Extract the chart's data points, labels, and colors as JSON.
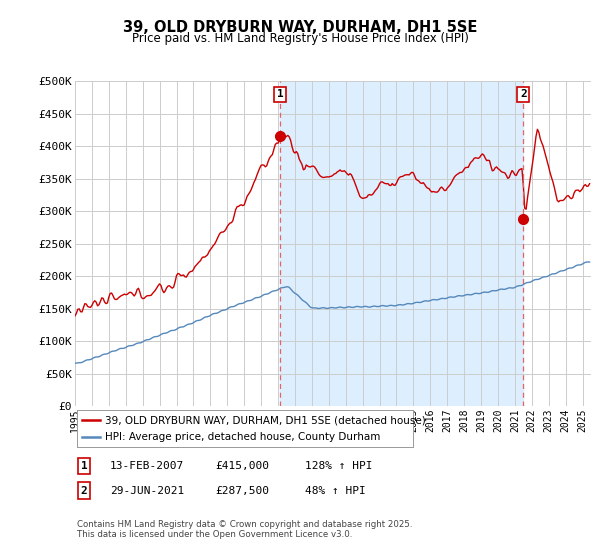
{
  "title": "39, OLD DRYBURN WAY, DURHAM, DH1 5SE",
  "subtitle": "Price paid vs. HM Land Registry's House Price Index (HPI)",
  "ylabel_ticks": [
    "£0",
    "£50K",
    "£100K",
    "£150K",
    "£200K",
    "£250K",
    "£300K",
    "£350K",
    "£400K",
    "£450K",
    "£500K"
  ],
  "ytick_values": [
    0,
    50000,
    100000,
    150000,
    200000,
    250000,
    300000,
    350000,
    400000,
    450000,
    500000
  ],
  "ylim": [
    0,
    500000
  ],
  "xlim_start": 1995.0,
  "xlim_end": 2025.5,
  "red_line_color": "#cc0000",
  "blue_line_color": "#5588bb",
  "dashed_line_color": "#dd6666",
  "shade_color": "#ddeeff",
  "marker1_x": 2007.11,
  "marker1_y": 415000,
  "marker2_x": 2021.5,
  "marker2_y": 287500,
  "legend_label_red": "39, OLD DRYBURN WAY, DURHAM, DH1 5SE (detached house)",
  "legend_label_blue": "HPI: Average price, detached house, County Durham",
  "annotation1_label": "1",
  "annotation2_label": "2",
  "table_row1": [
    "1",
    "13-FEB-2007",
    "£415,000",
    "128% ↑ HPI"
  ],
  "table_row2": [
    "2",
    "29-JUN-2021",
    "£287,500",
    "48% ↑ HPI"
  ],
  "footer": "Contains HM Land Registry data © Crown copyright and database right 2025.\nThis data is licensed under the Open Government Licence v3.0.",
  "background_color": "#ffffff",
  "grid_color": "#cccccc"
}
